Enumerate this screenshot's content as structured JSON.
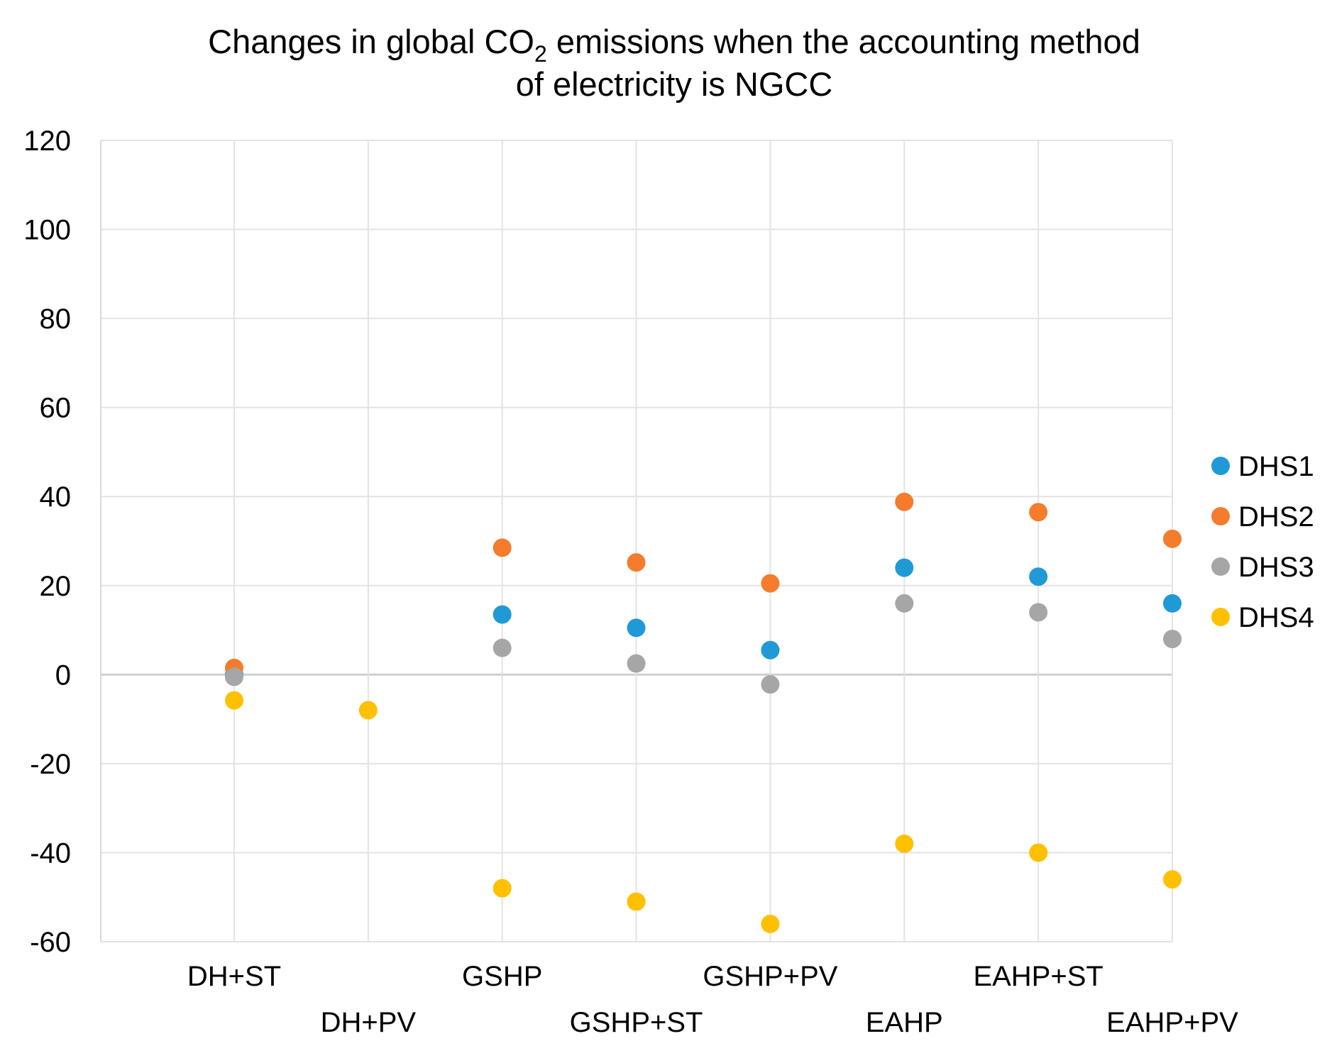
{
  "chart_data": {
    "type": "scatter",
    "title_line1_pre": "Changes in global CO",
    "title_line1_sub": "2",
    "title_line1_post": " emissions when the accounting method",
    "title_line2": "of electricity is NGCC",
    "categories": [
      "DH+ST",
      "DH+PV",
      "GSHP",
      "GSHP+ST",
      "GSHP+PV",
      "EAHP",
      "EAHP+ST",
      "EAHP+PV"
    ],
    "ylim": [
      -60,
      120
    ],
    "yticks": [
      120,
      100,
      80,
      60,
      40,
      20,
      0,
      -20,
      -40,
      -60
    ],
    "grid": true,
    "legend_position": "right",
    "series": [
      {
        "name": "DHS1",
        "color": "#1f9ad6",
        "values": [
          0,
          null,
          13.5,
          10.5,
          5.5,
          24,
          22,
          16
        ]
      },
      {
        "name": "DHS2",
        "color": "#f47c2c",
        "values": [
          1.5,
          null,
          28.5,
          25.2,
          20.5,
          38.8,
          36.5,
          30.5
        ]
      },
      {
        "name": "DHS3",
        "color": "#a6a6a6",
        "values": [
          -0.5,
          null,
          6,
          2.5,
          -2.2,
          16,
          14,
          8
        ]
      },
      {
        "name": "DHS4",
        "color": "#ffc000",
        "values": [
          -5.8,
          -8,
          -48,
          -51,
          -56,
          -38,
          -40,
          -46
        ]
      }
    ]
  }
}
